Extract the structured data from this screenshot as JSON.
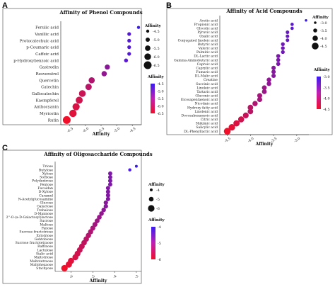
{
  "panel_letters": [
    "A",
    "B",
    "C"
  ],
  "chart_data": [
    {
      "panel": "A",
      "type": "scatter",
      "title": "Affinity of Phenol Compounds",
      "xlabel": "Affinity",
      "ylabel": "",
      "xlim": [
        -6.7,
        -4.3
      ],
      "xticks": [
        -6.5,
        -6.0,
        -5.5,
        -5.0,
        -4.5
      ],
      "tick_labels": [
        "-6.5",
        "-6.0",
        "-5.5",
        "-5.0",
        "-4.5"
      ],
      "categories": [
        "Ferulic acid",
        "Vanillic acid",
        "Protocatechuic acid",
        "p-Coumaric acid",
        "Caffeic acid",
        "p-Hydroxybenzoic acid",
        "Gastrodin",
        "Resveratrol",
        "Quercetin",
        "Catechin",
        "Gallocatechin",
        "Kaempferol",
        "Anthocyanin",
        "Myricetin",
        "Rutin"
      ],
      "values": [
        -4.3,
        -4.6,
        -4.6,
        -4.6,
        -4.6,
        -4.7,
        -5.3,
        -5.4,
        -5.8,
        -5.9,
        -6.1,
        -6.2,
        -6.3,
        -6.4,
        -6.6
      ],
      "size_legend": {
        "title": "Affinity",
        "values": [
          "-4.5",
          "-5.0",
          "-5.5",
          "-6.0",
          "-6.5"
        ]
      },
      "color_legend": {
        "title": "Affinity",
        "labels": [
          "-4.5",
          "-5.0",
          "-5.5",
          "-6.0",
          "-6.5"
        ],
        "high_color": "#3b1cf0",
        "low_color": "#f0102a"
      },
      "grid": false,
      "legend_position": "right"
    },
    {
      "panel": "B",
      "type": "scatter",
      "title": "Affinity of Acid Compounds",
      "xlabel": "Affinity",
      "ylabel": "",
      "xlim": [
        -4.6,
        -2.8
      ],
      "xticks": [
        -4.5,
        -4.0,
        -3.5,
        -3.0
      ],
      "tick_labels": [
        "-4.5",
        "-4.0",
        "-3.5",
        "-3.0"
      ],
      "categories": [
        "Acetic acid",
        "Propionic acid",
        "Glycolic acid",
        "Pyruvic acid",
        "Oxalic acid",
        "Conjugated linoleic acid",
        "Butyric acid",
        "Valeric acid",
        "Palmitic acid",
        "DL-Lactic acid",
        "Gamma-Aminobutyric acid",
        "Caproic acid",
        "Caprylic acid",
        "Fumaric acid",
        "DL-Malic acid",
        "Creatine",
        "Succinic acid",
        "Linoleic acid",
        "Tartaric acid",
        "Gluconic acid",
        "Eicosapentaenoic acid",
        "Nicotinic acid",
        "Hydroxy fatty acid",
        "Linolenic acid",
        "Docosahexaenoic acid",
        "Citric acid",
        "Shikimic acid",
        "Salicylic acid",
        "DL-Phenyllactic acid"
      ],
      "values": [
        -2.8,
        -3.1,
        -3.1,
        -3.2,
        -3.2,
        -3.2,
        -3.3,
        -3.3,
        -3.3,
        -3.4,
        -3.4,
        -3.4,
        -3.5,
        -3.5,
        -3.5,
        -3.6,
        -3.6,
        -3.7,
        -3.7,
        -3.8,
        -3.8,
        -3.9,
        -4.0,
        -4.0,
        -4.1,
        -4.2,
        -4.3,
        -4.4,
        -4.5
      ],
      "size_legend": {
        "title": "Affinity",
        "values": [
          "-3.0",
          "-3.5",
          "-4.0",
          "-4.5"
        ]
      },
      "color_legend": {
        "title": "Affinity",
        "labels": [
          "-3.0",
          "-3.5",
          "-4.0",
          "-4.5"
        ],
        "high_color": "#3b1cf0",
        "low_color": "#f0102a"
      },
      "grid": false,
      "legend_position": "right"
    },
    {
      "panel": "C",
      "type": "scatter",
      "title": "Affinity of Oligosaccharide Compounds",
      "xlabel": "Affinity",
      "ylabel": "",
      "xlim": [
        -6.6,
        -2.9
      ],
      "xticks": [
        -6,
        -5,
        -4,
        -3
      ],
      "tick_labels": [
        "-6",
        "-5",
        "-4",
        "-3"
      ],
      "categories": [
        "Triose",
        "Butylose",
        "Xylose",
        "Sorbose",
        "Polydextrose",
        "Pentose",
        "Fucoidan",
        "D-Xylose",
        "Caramel",
        "N-Acetylglucosamine",
        "Glucose",
        "Galactose",
        "Trehalose",
        "D-Mannose",
        "2''-O-(a-D-Galactosyl)lactose",
        "Sucrose",
        "Maltose",
        "Panose",
        "Sucrose fructotriose",
        "Xylotriose",
        "Gentobiose",
        "Sucrose fructotetraose",
        "Raffinose",
        "Lactulose",
        "Sialic acid",
        "Maltotriose",
        "Maltotetraose",
        "Maltohexaose",
        "Stachyose"
      ],
      "values": [
        -3.0,
        -3.3,
        -4.2,
        -4.2,
        -4.2,
        -4.2,
        -4.3,
        -4.3,
        -4.3,
        -4.3,
        -4.4,
        -4.4,
        -4.5,
        -4.6,
        -4.7,
        -4.8,
        -4.9,
        -5.0,
        -5.1,
        -5.2,
        -5.3,
        -5.4,
        -5.5,
        -5.6,
        -5.7,
        -5.8,
        -6.0,
        -6.1,
        -6.3
      ],
      "size_legend": {
        "title": "Affinity",
        "values": [
          "-4",
          "-5",
          "-6"
        ]
      },
      "color_legend": {
        "title": "Affinity",
        "labels": [
          "-4",
          "-5",
          "-6"
        ],
        "high_color": "#3b1cf0",
        "low_color": "#f0102a"
      },
      "grid": false,
      "legend_position": "right"
    }
  ]
}
